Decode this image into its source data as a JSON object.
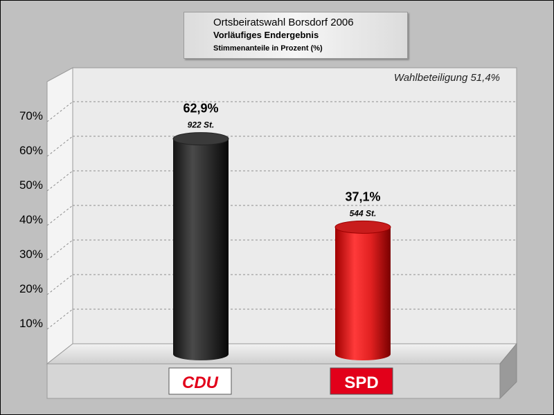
{
  "title": {
    "line1": "Ortsbeiratswahl Borsdorf 2006",
    "line2": "Vorläufiges Endergebnis",
    "line3": "Stimmenanteile in Prozent (%)"
  },
  "turnout": "Wahlbeteiligung 51,4%",
  "chart_data": {
    "type": "bar",
    "categories": [
      "CDU",
      "SPD"
    ],
    "values": [
      62.9,
      37.1
    ],
    "value_labels": [
      "62,9%",
      "37,1%"
    ],
    "vote_labels": [
      "922 St.",
      "544 St."
    ],
    "colors": [
      "#2a2a2a",
      "#e02020"
    ],
    "yticks": [
      "10%",
      "20%",
      "30%",
      "40%",
      "50%",
      "60%",
      "70%"
    ],
    "ylim": [
      0,
      80
    ],
    "grid": true,
    "annotation": "Wahlbeteiligung 51,4%"
  },
  "logos": [
    {
      "text": "CDU",
      "color": "#e2001a",
      "background": "#ffffff"
    },
    {
      "text": "SPD",
      "color": "#ffffff",
      "background": "#e2001a"
    }
  ]
}
